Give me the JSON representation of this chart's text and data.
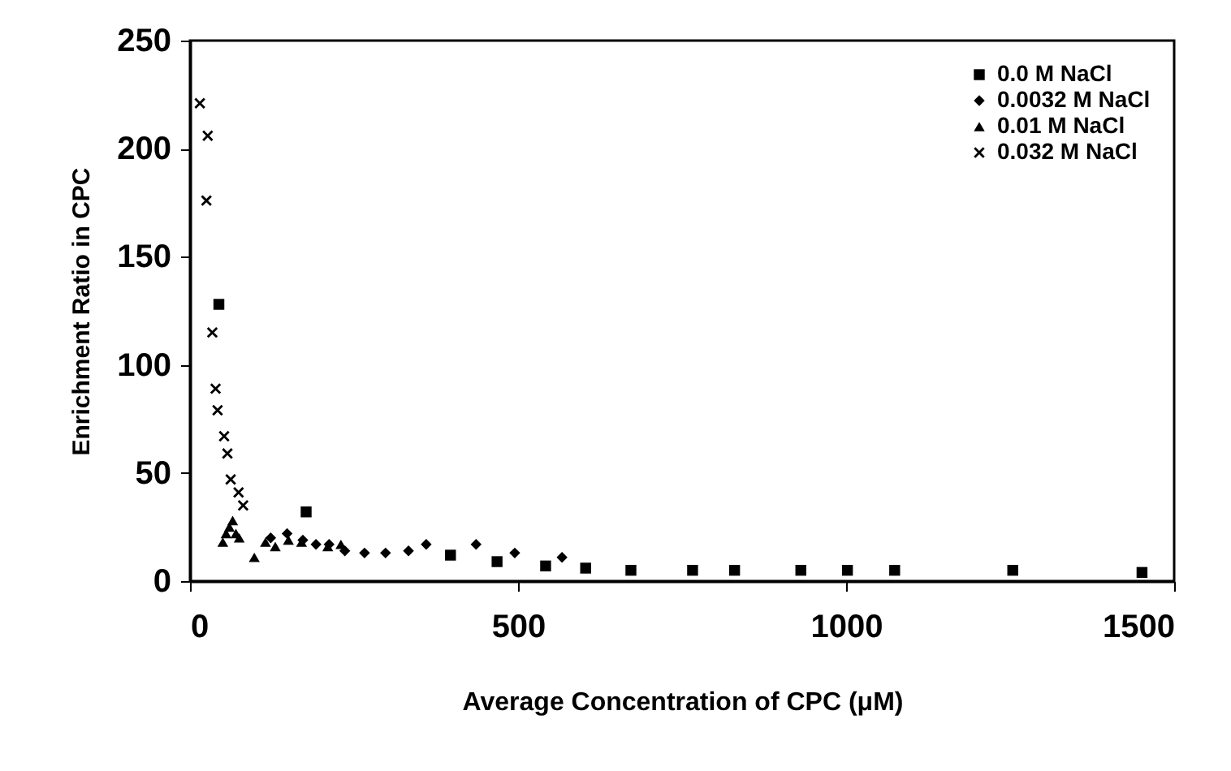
{
  "chart_data": {
    "type": "scatter",
    "xlabel": "Average Concentration of CPC  (μM)",
    "ylabel": "Enrichment Ratio in CPC",
    "xlim": [
      0,
      1500
    ],
    "xticks": [
      0,
      500,
      1000,
      1500
    ],
    "ylim": [
      0,
      250
    ],
    "yticks": [
      0,
      50,
      100,
      150,
      200,
      250
    ],
    "grid": false,
    "legend": "top right",
    "series": [
      {
        "name": "0.0     M NaCl",
        "color": "#000000",
        "marker": "square",
        "x": [
          44,
          177,
          397,
          468,
          542,
          603,
          672,
          766,
          830,
          931,
          1002,
          1074,
          1254,
          1451
        ],
        "values": [
          128,
          32,
          12,
          9,
          7,
          6,
          5,
          5,
          5,
          5,
          5,
          5,
          5,
          4
        ]
      },
      {
        "name": "0.0032 M NaCl",
        "color": "#000000",
        "marker": "diamond",
        "x": [
          123,
          148,
          172,
          192,
          212,
          236,
          266,
          298,
          333,
          360,
          436,
          495,
          567
        ],
        "values": [
          20,
          22,
          19,
          17,
          17,
          14,
          13,
          13,
          14,
          17,
          17,
          13,
          11
        ]
      },
      {
        "name": "0.01    M NaCl",
        "color": "#000000",
        "marker": "triangle",
        "x": [
          50,
          55,
          60,
          65,
          70,
          75,
          98,
          115,
          130,
          150,
          170,
          190,
          210,
          230
        ],
        "values": [
          18,
          22,
          25,
          28,
          22,
          20,
          11,
          18,
          16,
          19,
          18,
          null,
          16,
          17
        ]
      },
      {
        "name": "0.032   M NaCl",
        "color": "#000000",
        "marker": "cross",
        "x": [
          15,
          27,
          25,
          34,
          39,
          42,
          52,
          57,
          62,
          74,
          81
        ],
        "values": [
          221,
          206,
          176,
          115,
          89,
          79,
          67,
          59,
          47,
          41,
          35
        ]
      }
    ]
  }
}
